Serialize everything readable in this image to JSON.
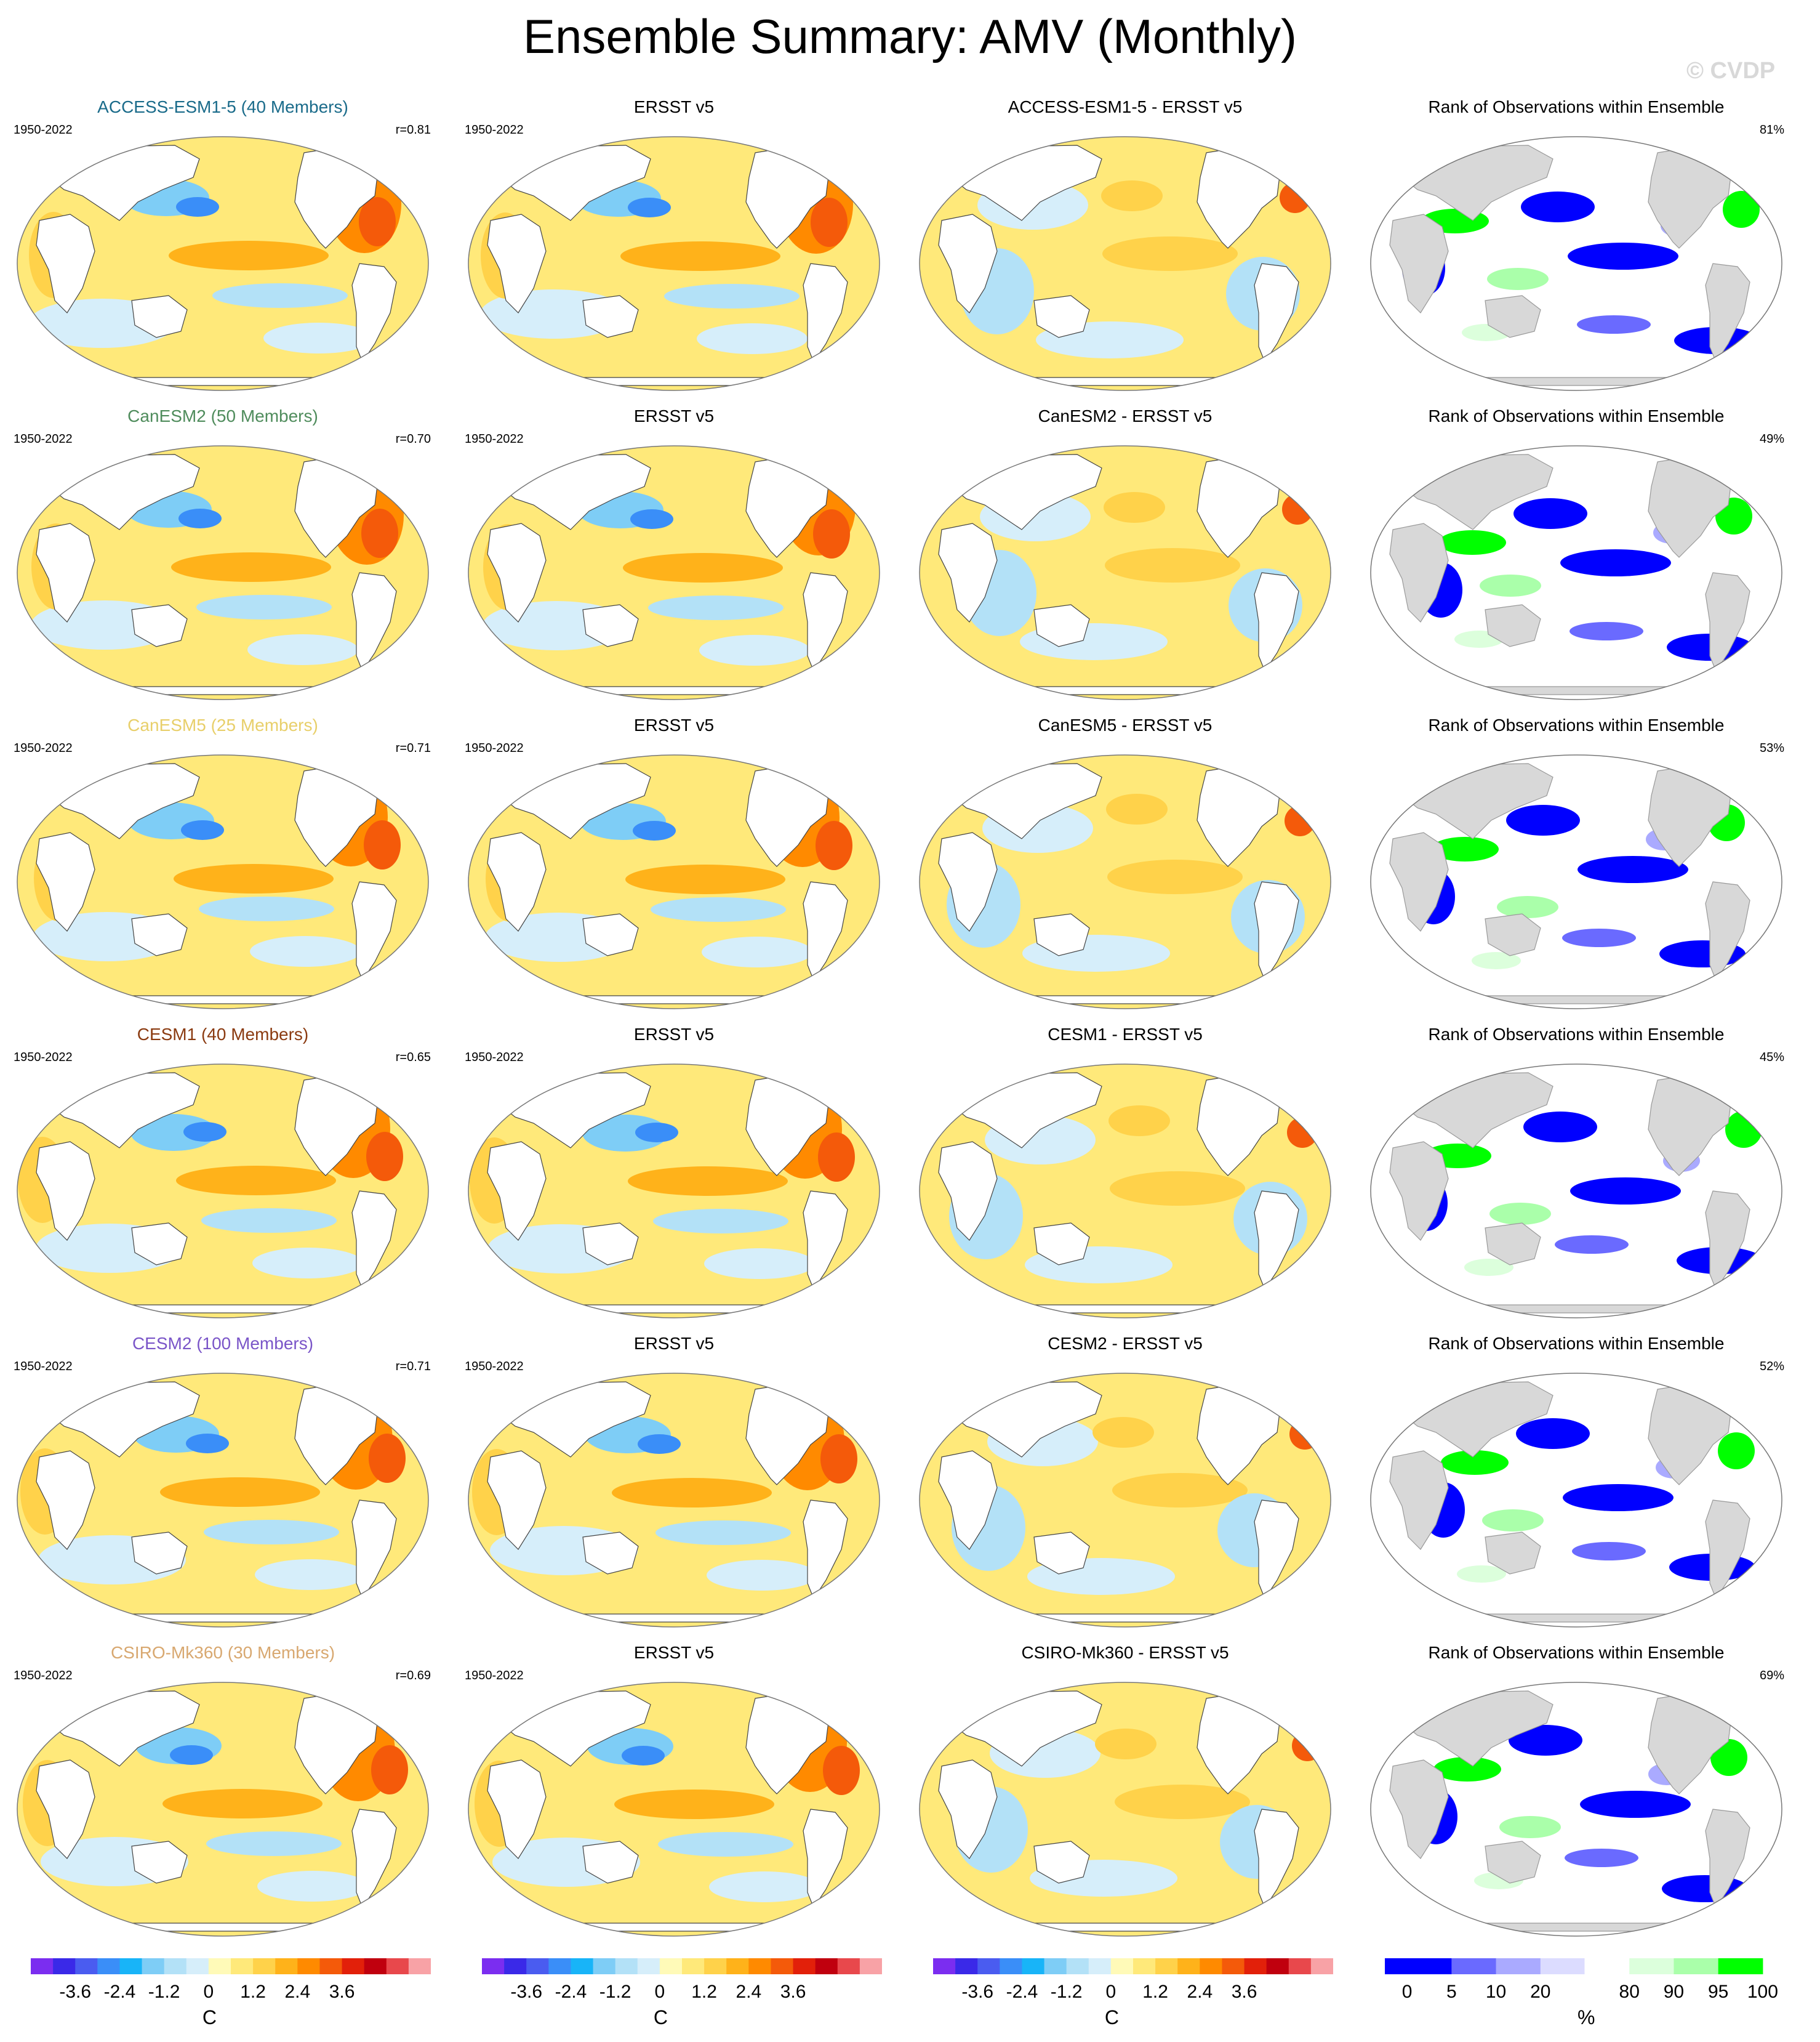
{
  "title": "Ensemble Summary: AMV (Monthly)",
  "watermark": "© CVDP",
  "colors": {
    "temp_scale": [
      "#7b2df0",
      "#3a29e8",
      "#4a5cf0",
      "#3a8ef8",
      "#18b4f8",
      "#7ecdf6",
      "#b3e1f7",
      "#d6eefa",
      "#fffab8",
      "#ffe97a",
      "#ffd24a",
      "#ffb21a",
      "#ff8a00",
      "#f45a0a",
      "#e2200a",
      "#c0000e",
      "#e8484c",
      "#f8a2a6"
    ],
    "rank_scale": [
      "#0000ff",
      "#6a6aff",
      "#aaaaff",
      "#dcdcff",
      "#ffffff",
      "#dcffdc",
      "#aaffaa",
      "#00ff00"
    ],
    "land_rank": "#d8d8d8"
  },
  "rows": [
    {
      "model": "ACCESS-ESM1-5 (40 Members)",
      "model_color": "#1a6b8a",
      "period": "1950-2022",
      "r": "r=0.81",
      "obs_title": "ERSST v5",
      "obs_period": "1950-2022",
      "diff_title": "ACCESS-ESM1-5 - ERSST v5",
      "rank_title": "Rank of Observations within Ensemble",
      "rank_pct": "81%"
    },
    {
      "model": "CanESM2 (50 Members)",
      "model_color": "#4f8c5c",
      "period": "1950-2022",
      "r": "r=0.70",
      "obs_title": "ERSST v5",
      "obs_period": "1950-2022",
      "diff_title": "CanESM2 - ERSST v5",
      "rank_title": "Rank of Observations within Ensemble",
      "rank_pct": "49%"
    },
    {
      "model": "CanESM5 (25 Members)",
      "model_color": "#e8cf6a",
      "period": "1950-2022",
      "r": "r=0.71",
      "obs_title": "ERSST v5",
      "obs_period": "1950-2022",
      "diff_title": "CanESM5 - ERSST v5",
      "rank_title": "Rank of Observations within Ensemble",
      "rank_pct": "53%"
    },
    {
      "model": "CESM1 (40 Members)",
      "model_color": "#8a3a10",
      "period": "1950-2022",
      "r": "r=0.65",
      "obs_title": "ERSST v5",
      "obs_period": "1950-2022",
      "diff_title": "CESM1 - ERSST v5",
      "rank_title": "Rank of Observations within Ensemble",
      "rank_pct": "45%"
    },
    {
      "model": "CESM2 (100 Members)",
      "model_color": "#7a55c8",
      "period": "1950-2022",
      "r": "r=0.71",
      "obs_title": "ERSST v5",
      "obs_period": "1950-2022",
      "diff_title": "CESM2 - ERSST v5",
      "rank_title": "Rank of Observations within Ensemble",
      "rank_pct": "52%"
    },
    {
      "model": "CSIRO-Mk360 (30 Members)",
      "model_color": "#d8a870",
      "period": "1950-2022",
      "r": "r=0.69",
      "obs_title": "ERSST v5",
      "obs_period": "1950-2022",
      "diff_title": "CSIRO-Mk360 - ERSST v5",
      "rank_title": "Rank of Observations within Ensemble",
      "rank_pct": "69%"
    }
  ],
  "colorbars": {
    "temp_ticks": [
      "-3.6",
      "-2.4",
      "-1.2",
      "0",
      "1.2",
      "2.4",
      "3.6"
    ],
    "temp_unit": "C",
    "rank_ticks": [
      "0",
      "5",
      "10",
      "20",
      "80",
      "90",
      "95",
      "100"
    ],
    "rank_unit": "%"
  },
  "chart_data": {
    "type": "heatmap",
    "title": "Ensemble Summary: AMV (Monthly)",
    "layout": "6 rows x 4 columns of global maps",
    "columns": [
      "model ensemble mean AMV pattern",
      "observations (ERSST v5)",
      "model minus observations",
      "rank of observations within ensemble"
    ],
    "temperature_scale_units": "C",
    "temperature_scale_ticks": [
      -3.6,
      -2.4,
      -1.2,
      0,
      1.2,
      2.4,
      3.6
    ],
    "rank_scale_units": "%",
    "rank_scale_ticks": [
      0,
      5,
      10,
      20,
      80,
      90,
      95,
      100
    ],
    "pattern_correlation": [
      {
        "model": "ACCESS-ESM1-5",
        "r": 0.81,
        "rank_pct": 81
      },
      {
        "model": "CanESM2",
        "r": 0.7,
        "rank_pct": 49
      },
      {
        "model": "CanESM5",
        "r": 0.71,
        "rank_pct": 53
      },
      {
        "model": "CESM1",
        "r": 0.65,
        "rank_pct": 45
      },
      {
        "model": "CESM2",
        "r": 0.71,
        "rank_pct": 52
      },
      {
        "model": "CSIRO-Mk360",
        "r": 0.69,
        "rank_pct": 69
      }
    ]
  }
}
